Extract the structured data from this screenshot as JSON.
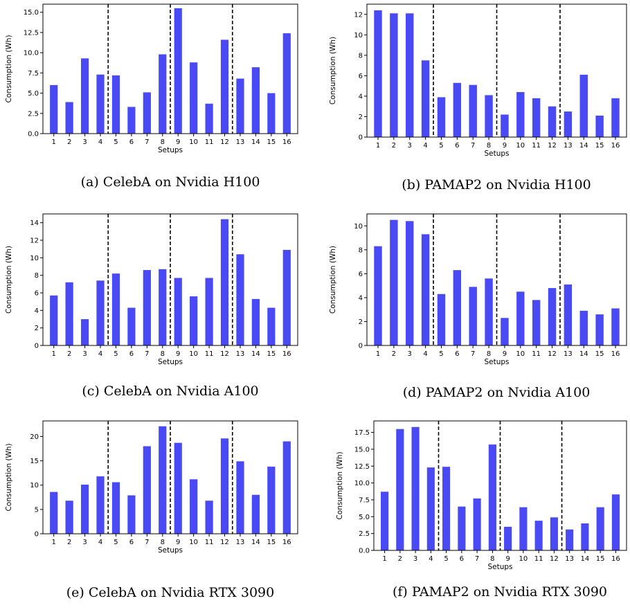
{
  "chart_data": [
    {
      "type": "bar",
      "caption": "(a) CelebA on Nvidia H100",
      "xlabel": "Setups",
      "ylabel": "Consumption (Wh)",
      "categories": [
        "1",
        "2",
        "3",
        "4",
        "5",
        "6",
        "7",
        "8",
        "9",
        "10",
        "11",
        "12",
        "13",
        "14",
        "15",
        "16"
      ],
      "values": [
        6.0,
        3.9,
        9.3,
        7.3,
        7.2,
        3.3,
        5.1,
        9.8,
        15.5,
        8.8,
        3.7,
        11.6,
        6.8,
        8.2,
        5.0,
        12.4
      ],
      "ylim": [
        0,
        16.0
      ],
      "yticks": [
        0.0,
        2.5,
        5.0,
        7.5,
        10.0,
        12.5,
        15.0
      ],
      "ytick_labels": [
        "0.0",
        "2.5",
        "5.0",
        "7.5",
        "10.0",
        "12.5",
        "15.0"
      ],
      "separators": [
        4.5,
        8.5,
        12.5
      ],
      "bar_color": "#4a4af5"
    },
    {
      "type": "bar",
      "caption": "(b) PAMAP2 on Nvidia H100",
      "xlabel": "Setups",
      "ylabel": "Consumption (Wh)",
      "categories": [
        "1",
        "2",
        "3",
        "4",
        "5",
        "6",
        "7",
        "8",
        "9",
        "10",
        "11",
        "12",
        "13",
        "14",
        "15",
        "16"
      ],
      "values": [
        12.4,
        12.1,
        12.1,
        7.5,
        3.9,
        5.3,
        5.1,
        4.1,
        2.2,
        4.4,
        3.8,
        3.0,
        2.5,
        6.1,
        2.1,
        3.8
      ],
      "ylim": [
        0,
        13.0
      ],
      "yticks": [
        0,
        2,
        4,
        6,
        8,
        10,
        12
      ],
      "ytick_labels": [
        "0",
        "2",
        "4",
        "6",
        "8",
        "10",
        "12"
      ],
      "separators": [
        4.5,
        8.5,
        12.5
      ],
      "bar_color": "#4a4af5"
    },
    {
      "type": "bar",
      "caption": "(c) CelebA on Nvidia A100",
      "xlabel": "Setups",
      "ylabel": "Consumption (Wh)",
      "categories": [
        "1",
        "2",
        "3",
        "4",
        "5",
        "6",
        "7",
        "8",
        "9",
        "10",
        "11",
        "12",
        "13",
        "14",
        "15",
        "16"
      ],
      "values": [
        5.7,
        7.2,
        3.0,
        7.4,
        8.2,
        4.3,
        8.6,
        8.7,
        7.7,
        5.6,
        7.7,
        14.4,
        10.4,
        5.3,
        4.3,
        10.9
      ],
      "ylim": [
        0,
        15.0
      ],
      "yticks": [
        0,
        2,
        4,
        6,
        8,
        10,
        12,
        14
      ],
      "ytick_labels": [
        "0",
        "2",
        "4",
        "6",
        "8",
        "10",
        "12",
        "14"
      ],
      "separators": [
        4.5,
        8.5,
        12.5
      ],
      "bar_color": "#4a4af5"
    },
    {
      "type": "bar",
      "caption": "(d) PAMAP2 on Nvidia A100",
      "xlabel": "Setups",
      "ylabel": "Consumption (Wh)",
      "categories": [
        "1",
        "2",
        "3",
        "4",
        "5",
        "6",
        "7",
        "8",
        "9",
        "10",
        "11",
        "12",
        "13",
        "14",
        "15",
        "16"
      ],
      "values": [
        8.3,
        10.5,
        10.4,
        9.3,
        4.3,
        6.3,
        4.9,
        5.6,
        2.3,
        4.5,
        3.8,
        4.8,
        5.1,
        2.9,
        2.6,
        3.1
      ],
      "ylim": [
        0,
        11.0
      ],
      "yticks": [
        0,
        2,
        4,
        6,
        8,
        10
      ],
      "ytick_labels": [
        "0",
        "2",
        "4",
        "6",
        "8",
        "10"
      ],
      "separators": [
        4.5,
        8.5,
        12.5
      ],
      "bar_color": "#4a4af5"
    },
    {
      "type": "bar",
      "caption": "(e) CelebA on Nvidia RTX 3090",
      "xlabel": "Setups",
      "ylabel": "Consumption (Wh)",
      "categories": [
        "1",
        "2",
        "3",
        "4",
        "5",
        "6",
        "7",
        "8",
        "9",
        "10",
        "11",
        "12",
        "13",
        "14",
        "15",
        "16"
      ],
      "values": [
        8.6,
        6.8,
        10.1,
        11.8,
        10.6,
        7.9,
        18.0,
        22.1,
        18.7,
        11.2,
        6.8,
        19.6,
        14.9,
        8.0,
        13.8,
        19.0
      ],
      "ylim": [
        0,
        23.2
      ],
      "yticks": [
        0,
        5,
        10,
        15,
        20
      ],
      "ytick_labels": [
        "0",
        "5",
        "10",
        "15",
        "20"
      ],
      "separators": [
        4.5,
        8.5,
        12.5
      ],
      "bar_color": "#4a4af5"
    },
    {
      "type": "bar",
      "caption": "(f) PAMAP2 on Nvidia RTX 3090",
      "xlabel": "Setups",
      "ylabel": "Consumption (Wh)",
      "categories": [
        "1",
        "2",
        "3",
        "4",
        "5",
        "6",
        "7",
        "8",
        "9",
        "10",
        "11",
        "12",
        "13",
        "14",
        "15",
        "16"
      ],
      "values": [
        8.7,
        18.0,
        18.3,
        12.3,
        12.4,
        6.5,
        7.7,
        15.7,
        3.5,
        6.4,
        4.4,
        4.9,
        3.1,
        4.0,
        6.4,
        8.3
      ],
      "ylim": [
        0,
        19.2
      ],
      "yticks": [
        0.0,
        2.5,
        5.0,
        7.5,
        10.0,
        12.5,
        15.0,
        17.5
      ],
      "ytick_labels": [
        "0.0",
        "2.5",
        "5.0",
        "7.5",
        "10.0",
        "12.5",
        "15.0",
        "17.5"
      ],
      "separators": [
        4.5,
        8.5,
        12.5
      ],
      "bar_color": "#4a4af5"
    }
  ]
}
